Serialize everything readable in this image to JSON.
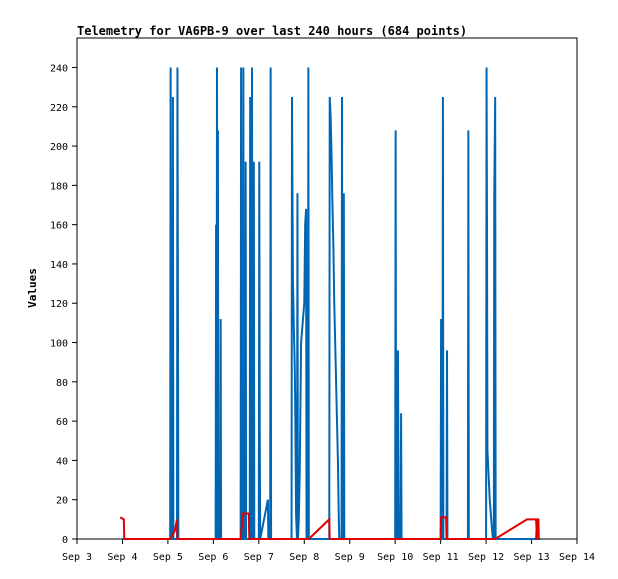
{
  "chart_data": {
    "type": "line",
    "title": "Telemetry for VA6PB-9 over last 240 hours (684 points)",
    "ylabel": "Values",
    "xlabel": "",
    "ylim": [
      0,
      255
    ],
    "xlim_days": [
      3,
      14
    ],
    "x_ticks": [
      "Sep 3",
      "Sep 4",
      "Sep 5",
      "Sep 6",
      "Sep 7",
      "Sep 8",
      "Sep 9",
      "Sep 10",
      "Sep 11",
      "Sep 12",
      "Sep 13",
      "Sep 14"
    ],
    "y_ticks": [
      0,
      20,
      40,
      60,
      80,
      100,
      120,
      140,
      160,
      180,
      200,
      220,
      240
    ],
    "grid": false,
    "legend": "none",
    "series": [
      {
        "color": "#0066b3",
        "points": [
          [
            4.0,
            0
          ],
          [
            5.05,
            0
          ],
          [
            5.06,
            240
          ],
          [
            5.07,
            0
          ],
          [
            5.1,
            0
          ],
          [
            5.11,
            225
          ],
          [
            5.12,
            0
          ],
          [
            5.2,
            0
          ],
          [
            5.21,
            240
          ],
          [
            5.22,
            128
          ],
          [
            5.23,
            0
          ],
          [
            6.05,
            0
          ],
          [
            6.06,
            160
          ],
          [
            6.07,
            0
          ],
          [
            6.08,
            240
          ],
          [
            6.09,
            0
          ],
          [
            6.1,
            208
          ],
          [
            6.11,
            0
          ],
          [
            6.15,
            0
          ],
          [
            6.16,
            112
          ],
          [
            6.17,
            0
          ],
          [
            6.6,
            0
          ],
          [
            6.61,
            240
          ],
          [
            6.62,
            0
          ],
          [
            6.65,
            0
          ],
          [
            6.66,
            240
          ],
          [
            6.67,
            0
          ],
          [
            6.7,
            0
          ],
          [
            6.71,
            192
          ],
          [
            6.72,
            0
          ],
          [
            6.8,
            0
          ],
          [
            6.81,
            225
          ],
          [
            6.82,
            0
          ],
          [
            6.84,
            0
          ],
          [
            6.85,
            240
          ],
          [
            6.86,
            0
          ],
          [
            6.88,
            0
          ],
          [
            6.89,
            192
          ],
          [
            6.9,
            0
          ],
          [
            7.0,
            0
          ],
          [
            7.01,
            192
          ],
          [
            7.02,
            56
          ],
          [
            7.03,
            0
          ],
          [
            7.2,
            20
          ],
          [
            7.21,
            0
          ],
          [
            7.25,
            0
          ],
          [
            7.26,
            240
          ],
          [
            7.27,
            0
          ],
          [
            7.72,
            0
          ],
          [
            7.73,
            225
          ],
          [
            7.75,
            132
          ],
          [
            7.77,
            108
          ],
          [
            7.79,
            88
          ],
          [
            7.8,
            70
          ],
          [
            7.81,
            40
          ],
          [
            7.82,
            12
          ],
          [
            7.84,
            0
          ],
          [
            7.85,
            176
          ],
          [
            7.86,
            0
          ],
          [
            7.88,
            10
          ],
          [
            7.9,
            34
          ],
          [
            7.93,
            100
          ],
          [
            8.0,
            120
          ],
          [
            8.02,
            160
          ],
          [
            8.04,
            168
          ],
          [
            8.05,
            0
          ],
          [
            8.08,
            0
          ],
          [
            8.09,
            240
          ],
          [
            8.1,
            0
          ],
          [
            8.55,
            0
          ],
          [
            8.56,
            225
          ],
          [
            8.58,
            215
          ],
          [
            8.6,
            195
          ],
          [
            8.62,
            170
          ],
          [
            8.64,
            150
          ],
          [
            8.66,
            120
          ],
          [
            8.68,
            100
          ],
          [
            8.7,
            80
          ],
          [
            8.72,
            60
          ],
          [
            8.74,
            40
          ],
          [
            8.76,
            10
          ],
          [
            8.77,
            0
          ],
          [
            8.82,
            0
          ],
          [
            8.83,
            225
          ],
          [
            8.84,
            0
          ],
          [
            8.86,
            0
          ],
          [
            8.87,
            176
          ],
          [
            8.88,
            0
          ],
          [
            10.0,
            0
          ],
          [
            10.01,
            208
          ],
          [
            10.02,
            16
          ],
          [
            10.03,
            0
          ],
          [
            10.05,
            0
          ],
          [
            10.06,
            96
          ],
          [
            10.07,
            48
          ],
          [
            10.08,
            0
          ],
          [
            10.12,
            0
          ],
          [
            10.13,
            64
          ],
          [
            10.14,
            0
          ],
          [
            11.0,
            0
          ],
          [
            11.01,
            112
          ],
          [
            11.02,
            0
          ],
          [
            11.04,
            0
          ],
          [
            11.05,
            225
          ],
          [
            11.06,
            0
          ],
          [
            11.13,
            0
          ],
          [
            11.14,
            96
          ],
          [
            11.15,
            0
          ],
          [
            11.6,
            0
          ],
          [
            11.61,
            208
          ],
          [
            11.62,
            0
          ],
          [
            12.0,
            0
          ],
          [
            12.01,
            240
          ],
          [
            12.02,
            160
          ],
          [
            12.03,
            45
          ],
          [
            12.05,
            35
          ],
          [
            12.08,
            20
          ],
          [
            12.12,
            8
          ],
          [
            12.15,
            0
          ],
          [
            12.17,
            0
          ],
          [
            12.18,
            176
          ],
          [
            12.2,
            225
          ],
          [
            12.21,
            0
          ],
          [
            13.2,
            0
          ]
        ]
      },
      {
        "color": "#e00000",
        "points": [
          [
            3.95,
            11
          ],
          [
            4.03,
            10
          ],
          [
            4.04,
            0
          ],
          [
            5.05,
            0
          ],
          [
            5.15,
            4
          ],
          [
            5.2,
            10
          ],
          [
            5.21,
            0
          ],
          [
            6.6,
            0
          ],
          [
            6.65,
            13
          ],
          [
            6.78,
            13
          ],
          [
            6.79,
            0
          ],
          [
            7.0,
            0
          ],
          [
            8.1,
            0
          ],
          [
            8.55,
            10
          ],
          [
            8.56,
            0
          ],
          [
            11.0,
            0
          ],
          [
            11.01,
            11
          ],
          [
            11.12,
            11
          ],
          [
            11.13,
            0
          ],
          [
            12.2,
            0
          ],
          [
            12.9,
            10
          ],
          [
            13.1,
            10
          ],
          [
            13.12,
            0
          ],
          [
            13.1,
            0
          ],
          [
            13.12,
            10
          ],
          [
            13.15,
            10
          ],
          [
            13.16,
            0
          ]
        ]
      }
    ]
  }
}
